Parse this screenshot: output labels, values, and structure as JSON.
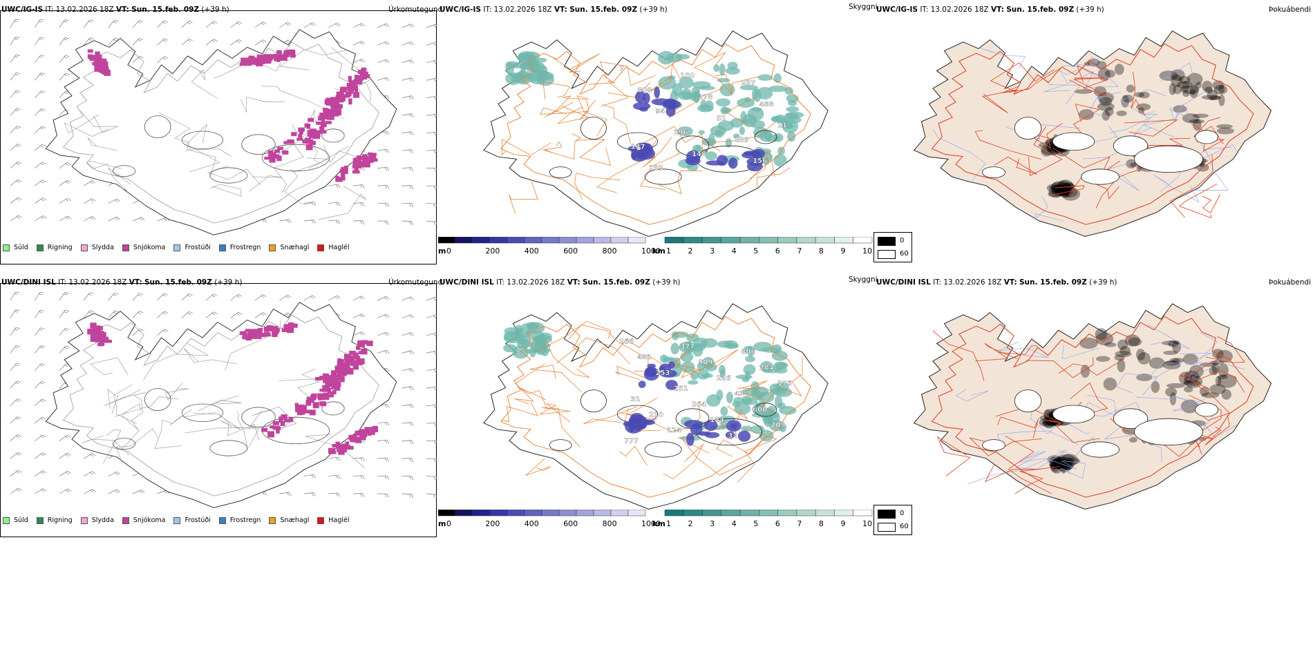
{
  "rows": [
    {
      "model": "UWC/IG-IS",
      "it_label": "IT:",
      "it_value": "13.02.2026 18Z",
      "vt_label": "VT:",
      "vt_value": "Sun. 15.feb. 09Z",
      "lead": "(+39 h)",
      "precip_title": "Úrkomutegund",
      "cloud_title": "Skyggni",
      "fog_title": "Þokuábendi",
      "ceiling_values": [
        "7",
        "150",
        "237",
        "808",
        "278",
        "488",
        "94",
        "31",
        "21",
        "196",
        "239",
        "137",
        "148",
        "156",
        "193"
      ],
      "vis_note": ""
    },
    {
      "model": "UWC/DINI ISL",
      "it_label": "IT:",
      "it_value": "13.02.2026 18Z",
      "vt_label": "VT:",
      "vt_value": "Sun. 15.feb. 09Z",
      "lead": "(+39 h)",
      "precip_title": "Úrkomutegund",
      "cloud_title": "Skyggni",
      "fog_title": "Þokuábendi",
      "ceiling_values": [
        "266",
        "377",
        "806",
        "481",
        "909",
        "284",
        "253",
        "226",
        "176",
        "251",
        "43",
        "31",
        "264",
        "600",
        "210",
        "134",
        "209",
        "124",
        "32",
        "777"
      ],
      "vis_note": ""
    }
  ],
  "precip_legend": [
    {
      "label": "Súld",
      "color": "#90ee90"
    },
    {
      "label": "Rigning",
      "color": "#2e8b57"
    },
    {
      "label": "Slydda",
      "color": "#f4a6d2"
    },
    {
      "label": "Snjókoma",
      "color": "#c0449c"
    },
    {
      "label": "Frostúði",
      "color": "#9ec9f0"
    },
    {
      "label": "Frostregn",
      "color": "#3a7fc6"
    },
    {
      "label": "Snæhagl",
      "color": "#f0a020"
    },
    {
      "label": "Haglél",
      "color": "#e81010"
    }
  ],
  "ceiling_bar": {
    "unit": "m",
    "ticks": [
      "0",
      "200",
      "400",
      "600",
      "800",
      "1000"
    ],
    "colors": [
      "#000000",
      "#141466",
      "#22228e",
      "#3636a8",
      "#4c4cb6",
      "#6262c0",
      "#7878c8",
      "#8e8ed2",
      "#a4a4dc",
      "#babae6",
      "#d0d0ee",
      "#e6e6f6"
    ]
  },
  "visibility_bar": {
    "unit": "km",
    "ticks": [
      "1",
      "2",
      "3",
      "4",
      "5",
      "6",
      "7",
      "8",
      "9",
      "10"
    ],
    "colors": [
      "#1a7a7a",
      "#2e8a86",
      "#449890",
      "#5aa69c",
      "#70b2a8",
      "#86beb4",
      "#9ccac0",
      "#b2d6cc",
      "#c8e2da",
      "#def0ea",
      "#ffffff"
    ]
  },
  "fog_legend": [
    {
      "label": "0",
      "color": "#000000"
    },
    {
      "label": "60",
      "color": "#ffffff"
    }
  ],
  "colors": {
    "snow": "#c0449c",
    "road_orange": "#e8843a",
    "fog_land": "#f3e4d8",
    "fog_road": "#e24a2a",
    "fog_river": "#8aa6ee",
    "vis_teal": "#6fb7ac",
    "ceiling_blue": "#4a4ab4"
  }
}
